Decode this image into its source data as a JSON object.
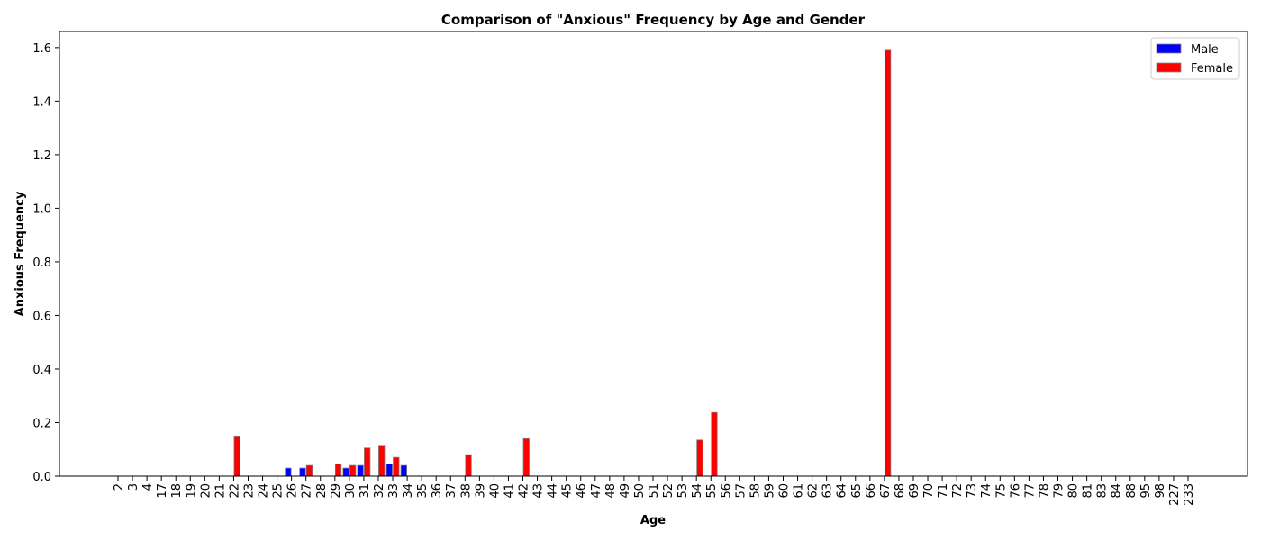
{
  "chart_data": {
    "type": "bar",
    "title": "Comparison of \"Anxious\" Frequency by Age and Gender",
    "xlabel": "Age",
    "ylabel": "Anxious Frequency",
    "ylim": [
      0,
      1.66
    ],
    "yticks": [
      "0.0",
      "0.2",
      "0.4",
      "0.6",
      "0.8",
      "1.0",
      "1.2",
      "1.4",
      "1.6"
    ],
    "legend_position": "top-right",
    "grid": false,
    "categories": [
      "2",
      "3",
      "4",
      "17",
      "18",
      "19",
      "20",
      "21",
      "22",
      "23",
      "24",
      "25",
      "26",
      "27",
      "28",
      "29",
      "30",
      "31",
      "32",
      "33",
      "34",
      "35",
      "36",
      "37",
      "38",
      "39",
      "40",
      "41",
      "42",
      "43",
      "44",
      "45",
      "46",
      "47",
      "48",
      "49",
      "50",
      "51",
      "52",
      "53",
      "54",
      "55",
      "56",
      "57",
      "58",
      "59",
      "60",
      "61",
      "62",
      "63",
      "64",
      "65",
      "66",
      "67",
      "68",
      "69",
      "70",
      "71",
      "72",
      "73",
      "74",
      "75",
      "76",
      "77",
      "78",
      "79",
      "80",
      "81",
      "83",
      "84",
      "88",
      "95",
      "98",
      "227",
      "233"
    ],
    "series": [
      {
        "name": "Male",
        "color": "#0000ff",
        "values": [
          0,
          0,
          0,
          0,
          0,
          0,
          0,
          0,
          0,
          0,
          0,
          0,
          0.03,
          0.03,
          0,
          0,
          0.03,
          0.04,
          0,
          0.045,
          0.04,
          0,
          0,
          0,
          0,
          0,
          0,
          0,
          0,
          0,
          0,
          0,
          0,
          0,
          0,
          0,
          0,
          0,
          0,
          0,
          0,
          0,
          0,
          0,
          0,
          0,
          0,
          0,
          0,
          0,
          0,
          0,
          0,
          0,
          0,
          0,
          0,
          0,
          0,
          0,
          0,
          0,
          0,
          0,
          0,
          0,
          0,
          0,
          0,
          0,
          0,
          0,
          0,
          0,
          0
        ]
      },
      {
        "name": "Female",
        "color": "#ff0000",
        "values": [
          0,
          0,
          0,
          0,
          0,
          0,
          0,
          0,
          0.15,
          0,
          0,
          0,
          0,
          0.04,
          0,
          0.045,
          0.04,
          0.105,
          0.115,
          0.07,
          0,
          0,
          0,
          0,
          0.08,
          0,
          0,
          0,
          0.14,
          0,
          0,
          0,
          0,
          0,
          0,
          0,
          0,
          0,
          0,
          0,
          0.135,
          0.238,
          0,
          0,
          0,
          0,
          0,
          0,
          0,
          0,
          0,
          0,
          0,
          1.59,
          0,
          0,
          0,
          0,
          0,
          0,
          0,
          0,
          0,
          0,
          0,
          0,
          0,
          0,
          0,
          0,
          0,
          0,
          0,
          0,
          0
        ]
      }
    ]
  }
}
